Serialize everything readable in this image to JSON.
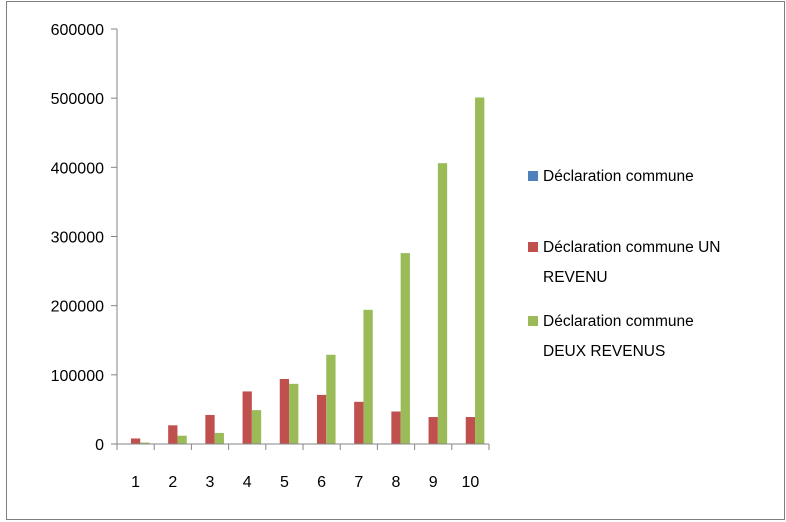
{
  "chart_data": {
    "type": "bar",
    "title": "",
    "xlabel": "",
    "ylabel": "",
    "categories": [
      "1",
      "2",
      "3",
      "4",
      "5",
      "6",
      "7",
      "8",
      "9",
      "10"
    ],
    "ylim": [
      0,
      600000
    ],
    "yticks": [
      "0",
      "100000",
      "200000",
      "300000",
      "400000",
      "500000",
      "600000"
    ],
    "grid": false,
    "legend_position": "right",
    "series": [
      {
        "name": "Déclaration commune",
        "legend_lines": [
          "Déclaration commune"
        ],
        "color": "#4f81bd",
        "values": [
          0,
          0,
          0,
          0,
          0,
          0,
          0,
          0,
          0,
          0
        ]
      },
      {
        "name": "Déclaration commune UN REVENU",
        "legend_lines": [
          "Déclaration commune UN",
          "REVENU"
        ],
        "color": "#c0504d",
        "values": [
          8000,
          27000,
          42000,
          76000,
          94000,
          71000,
          61000,
          47000,
          39000,
          39000
        ]
      },
      {
        "name": "Déclaration commune DEUX REVENUS",
        "legend_lines": [
          "Déclaration commune",
          "DEUX REVENUS"
        ],
        "color": "#9bbb59",
        "values": [
          2000,
          12000,
          16000,
          49000,
          87000,
          129000,
          194000,
          276000,
          406000,
          501000
        ]
      }
    ]
  }
}
